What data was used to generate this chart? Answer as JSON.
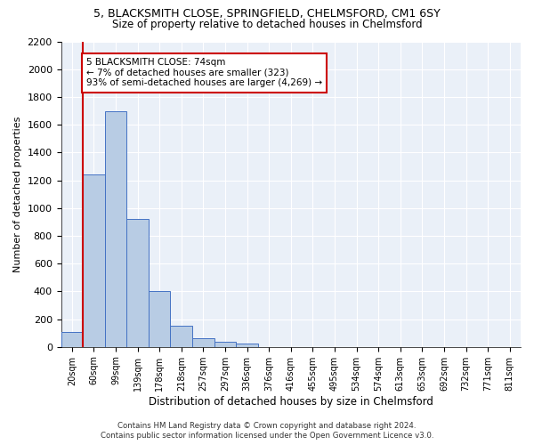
{
  "title1": "5, BLACKSMITH CLOSE, SPRINGFIELD, CHELMSFORD, CM1 6SY",
  "title2": "Size of property relative to detached houses in Chelmsford",
  "xlabel": "Distribution of detached houses by size in Chelmsford",
  "ylabel": "Number of detached properties",
  "footer1": "Contains HM Land Registry data © Crown copyright and database right 2024.",
  "footer2": "Contains public sector information licensed under the Open Government Licence v3.0.",
  "annotation_line1": "5 BLACKSMITH CLOSE: 74sqm",
  "annotation_line2": "← 7% of detached houses are smaller (323)",
  "annotation_line3": "93% of semi-detached houses are larger (4,269) →",
  "bar_color": "#b8cce4",
  "bar_edge_color": "#4472c4",
  "categories": [
    "20sqm",
    "60sqm",
    "99sqm",
    "139sqm",
    "178sqm",
    "218sqm",
    "257sqm",
    "297sqm",
    "336sqm",
    "376sqm",
    "416sqm",
    "455sqm",
    "495sqm",
    "534sqm",
    "574sqm",
    "613sqm",
    "653sqm",
    "692sqm",
    "732sqm",
    "771sqm",
    "811sqm"
  ],
  "values": [
    110,
    1240,
    1700,
    920,
    400,
    150,
    65,
    35,
    22,
    0,
    0,
    0,
    0,
    0,
    0,
    0,
    0,
    0,
    0,
    0,
    0
  ],
  "vline_x": 0.5,
  "ylim": [
    0,
    2200
  ],
  "yticks": [
    0,
    200,
    400,
    600,
    800,
    1000,
    1200,
    1400,
    1600,
    1800,
    2000,
    2200
  ],
  "vline_color": "#cc0000",
  "bg_color": "#eaf0f8",
  "grid_color": "#ffffff",
  "figsize": [
    6.0,
    5.0
  ],
  "dpi": 100
}
